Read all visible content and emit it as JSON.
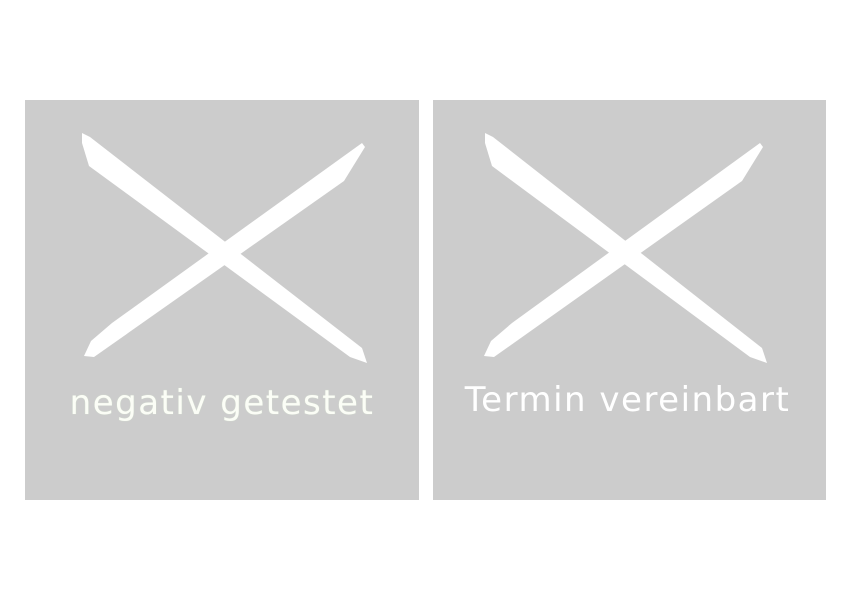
{
  "tiles": [
    {
      "label": "negativ getestet",
      "icon": "x-icon"
    },
    {
      "label": "Termin vereinbart",
      "icon": "x-icon"
    }
  ],
  "colors": {
    "page_background": "#ffffff",
    "tile_background": "#cccccc",
    "icon_and_text": "#ffffff"
  }
}
